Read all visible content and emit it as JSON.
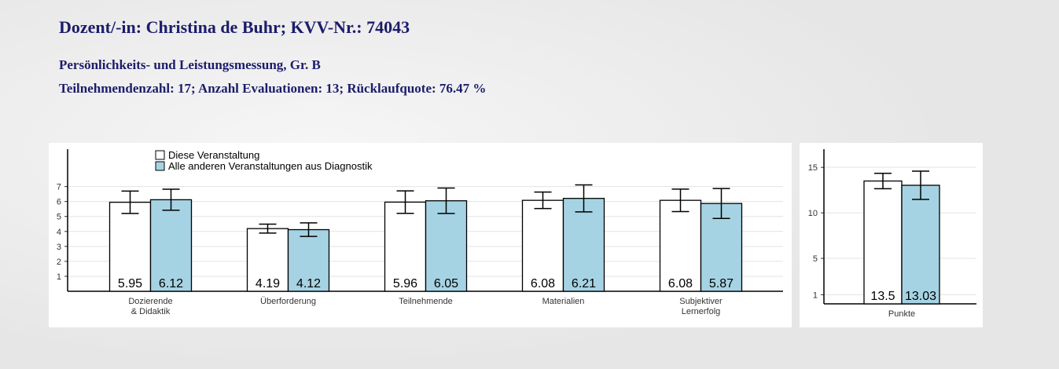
{
  "header": {
    "title": "Dozent/-in: Christina de Buhr; KVV-Nr.: 74043",
    "course": "Persönlichkeits- und Leistungsmessung, Gr. B",
    "stats": "Teilnehmendenzahl: 17; Anzahl Evaluationen: 13; Rücklaufquote: 76.47 %"
  },
  "chart_data": [
    {
      "type": "bar",
      "categories": [
        "Dozierende\n& Didaktik",
        "Überforderung",
        "Teilnehmende",
        "Materialien",
        "Subjektiver\nLernerfolg"
      ],
      "series": [
        {
          "name": "Diese Veranstaltung",
          "color": "#ffffff",
          "values": [
            5.95,
            4.19,
            5.96,
            6.08,
            6.08
          ],
          "errors": [
            0.75,
            0.3,
            0.75,
            0.55,
            0.75
          ]
        },
        {
          "name": "Alle anderen Veranstaltungen aus Diagnostik",
          "color": "#a6d3e3",
          "values": [
            6.12,
            4.12,
            6.05,
            6.21,
            5.87
          ],
          "errors": [
            0.7,
            0.45,
            0.85,
            0.9,
            1.0
          ]
        }
      ],
      "ylim": [
        0,
        9.5
      ],
      "yticks": [
        1,
        2,
        3,
        4,
        5,
        6,
        7
      ],
      "grid": true,
      "legend": "top-left"
    },
    {
      "type": "bar",
      "categories": [
        "Punkte"
      ],
      "series": [
        {
          "color": "#ffffff",
          "values": [
            13.5
          ],
          "errors": [
            0.85
          ]
        },
        {
          "color": "#a6d3e3",
          "values": [
            13.03
          ],
          "errors": [
            1.55
          ]
        }
      ],
      "ylim": [
        0,
        17
      ],
      "yticks": [
        1,
        5,
        10,
        15
      ],
      "grid": true
    }
  ]
}
